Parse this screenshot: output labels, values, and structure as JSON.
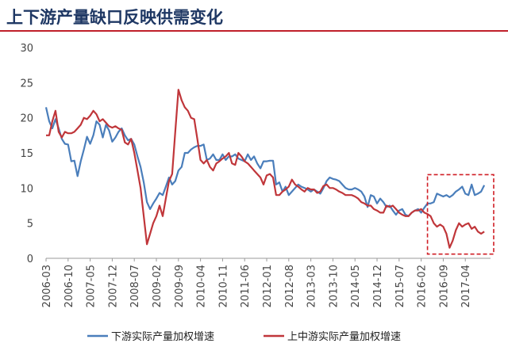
{
  "title": "上下游产量缺口反映供需变化",
  "chart_data": {
    "type": "line",
    "title": "上下游产量缺口反映供需变化",
    "xlabel": "",
    "ylabel": "",
    "ylim": [
      0,
      30
    ],
    "yticks": [
      0,
      5,
      10,
      15,
      20,
      25,
      30
    ],
    "xtick_labels": [
      "2006-03",
      "2006-10",
      "2007-05",
      "2007-12",
      "2008-07",
      "2009-02",
      "2009-09",
      "2010-04",
      "2010-11",
      "2011-06",
      "2012-01",
      "2012-08",
      "2013-03",
      "2013-10",
      "2014-05",
      "2014-12",
      "2015-07",
      "2016-02",
      "2016-09",
      "2017-04"
    ],
    "x_start": "2006-03",
    "x_end": "2017-12",
    "grid": false,
    "legend_position": "bottom",
    "highlight_box": {
      "x_from": "2016-04",
      "x_to": "2018-01",
      "y_from": 0.6,
      "y_to": 11.9
    },
    "series": [
      {
        "name": "下游实际产量加权增速",
        "color": "#4a7ebb",
        "points": [
          [
            "2006-03",
            21.5
          ],
          [
            "2006-04",
            19.5
          ],
          [
            "2006-05",
            18.5
          ],
          [
            "2006-06",
            19.8
          ],
          [
            "2006-07",
            18.5
          ],
          [
            "2006-08",
            17.0
          ],
          [
            "2006-09",
            16.3
          ],
          [
            "2006-10",
            16.2
          ],
          [
            "2006-11",
            13.8
          ],
          [
            "2006-12",
            13.9
          ],
          [
            "2007-01",
            11.7
          ],
          [
            "2007-02",
            13.8
          ],
          [
            "2007-03",
            15.5
          ],
          [
            "2007-04",
            17.3
          ],
          [
            "2007-05",
            16.3
          ],
          [
            "2007-06",
            17.5
          ],
          [
            "2007-07",
            19.5
          ],
          [
            "2007-08",
            19.0
          ],
          [
            "2007-09",
            17.2
          ],
          [
            "2007-10",
            19.0
          ],
          [
            "2007-11",
            18.2
          ],
          [
            "2007-12",
            16.6
          ],
          [
            "2008-01",
            17.2
          ],
          [
            "2008-02",
            18.0
          ],
          [
            "2008-03",
            18.5
          ],
          [
            "2008-04",
            17.5
          ],
          [
            "2008-05",
            16.8
          ],
          [
            "2008-06",
            17.0
          ],
          [
            "2008-07",
            16.2
          ],
          [
            "2008-08",
            14.5
          ],
          [
            "2008-09",
            13.0
          ],
          [
            "2008-10",
            10.8
          ],
          [
            "2008-11",
            8.0
          ],
          [
            "2008-12",
            7.0
          ],
          [
            "2009-01",
            7.8
          ],
          [
            "2009-02",
            8.5
          ],
          [
            "2009-03",
            9.3
          ],
          [
            "2009-04",
            9.0
          ],
          [
            "2009-05",
            10.2
          ],
          [
            "2009-06",
            11.5
          ],
          [
            "2009-07",
            10.5
          ],
          [
            "2009-08",
            11.0
          ],
          [
            "2009-09",
            12.5
          ],
          [
            "2009-10",
            13.0
          ],
          [
            "2009-11",
            15.0
          ],
          [
            "2009-12",
            15.0
          ],
          [
            "2010-01",
            15.5
          ],
          [
            "2010-02",
            15.8
          ],
          [
            "2010-03",
            16.0
          ],
          [
            "2010-04",
            16.0
          ],
          [
            "2010-05",
            16.2
          ],
          [
            "2010-06",
            14.0
          ],
          [
            "2010-07",
            14.2
          ],
          [
            "2010-08",
            14.8
          ],
          [
            "2010-09",
            14.0
          ],
          [
            "2010-10",
            14.0
          ],
          [
            "2010-11",
            14.8
          ],
          [
            "2010-12",
            14.0
          ],
          [
            "2011-01",
            14.5
          ],
          [
            "2011-02",
            14.5
          ],
          [
            "2011-03",
            14.8
          ],
          [
            "2011-04",
            14.2
          ],
          [
            "2011-05",
            14.0
          ],
          [
            "2011-06",
            13.8
          ],
          [
            "2011-07",
            14.8
          ],
          [
            "2011-08",
            14.0
          ],
          [
            "2011-09",
            14.5
          ],
          [
            "2011-10",
            13.5
          ],
          [
            "2011-11",
            12.8
          ],
          [
            "2011-12",
            13.8
          ],
          [
            "2012-01",
            13.8
          ],
          [
            "2012-02",
            13.9
          ],
          [
            "2012-03",
            13.9
          ],
          [
            "2012-04",
            10.5
          ],
          [
            "2012-05",
            10.8
          ],
          [
            "2012-06",
            9.5
          ],
          [
            "2012-07",
            10.2
          ],
          [
            "2012-08",
            9.0
          ],
          [
            "2012-09",
            9.5
          ],
          [
            "2012-10",
            10.0
          ],
          [
            "2012-11",
            10.5
          ],
          [
            "2012-12",
            10.2
          ],
          [
            "2013-01",
            10.0
          ],
          [
            "2013-02",
            9.8
          ],
          [
            "2013-03",
            9.5
          ],
          [
            "2013-04",
            9.8
          ],
          [
            "2013-05",
            9.5
          ],
          [
            "2013-06",
            9.2
          ],
          [
            "2013-07",
            10.0
          ],
          [
            "2013-08",
            11.0
          ],
          [
            "2013-09",
            11.5
          ],
          [
            "2013-10",
            11.3
          ],
          [
            "2013-11",
            11.2
          ],
          [
            "2013-12",
            11.0
          ],
          [
            "2014-01",
            10.5
          ],
          [
            "2014-02",
            10.0
          ],
          [
            "2014-03",
            9.8
          ],
          [
            "2014-04",
            9.8
          ],
          [
            "2014-05",
            10.0
          ],
          [
            "2014-06",
            9.8
          ],
          [
            "2014-07",
            9.5
          ],
          [
            "2014-08",
            8.8
          ],
          [
            "2014-09",
            7.3
          ],
          [
            "2014-10",
            9.0
          ],
          [
            "2014-11",
            8.8
          ],
          [
            "2014-12",
            7.8
          ],
          [
            "2015-01",
            8.5
          ],
          [
            "2015-02",
            8.0
          ],
          [
            "2015-03",
            7.3
          ],
          [
            "2015-04",
            7.5
          ],
          [
            "2015-05",
            6.8
          ],
          [
            "2015-06",
            6.2
          ],
          [
            "2015-07",
            6.8
          ],
          [
            "2015-08",
            7.0
          ],
          [
            "2015-09",
            6.2
          ],
          [
            "2015-10",
            6.0
          ],
          [
            "2015-11",
            6.5
          ],
          [
            "2015-12",
            6.8
          ],
          [
            "2016-01",
            7.0
          ],
          [
            "2016-02",
            6.5
          ],
          [
            "2016-03",
            7.2
          ],
          [
            "2016-04",
            7.8
          ],
          [
            "2016-05",
            7.8
          ],
          [
            "2016-06",
            8.0
          ],
          [
            "2016-07",
            9.2
          ],
          [
            "2016-08",
            9.0
          ],
          [
            "2016-09",
            8.8
          ],
          [
            "2016-10",
            9.0
          ],
          [
            "2016-11",
            8.7
          ],
          [
            "2016-12",
            9.0
          ],
          [
            "2017-01",
            9.5
          ],
          [
            "2017-02",
            9.8
          ],
          [
            "2017-03",
            10.2
          ],
          [
            "2017-04",
            9.2
          ],
          [
            "2017-05",
            9.0
          ],
          [
            "2017-06",
            10.5
          ],
          [
            "2017-07",
            9.0
          ],
          [
            "2017-08",
            9.2
          ],
          [
            "2017-09",
            9.5
          ],
          [
            "2017-10",
            10.4
          ]
        ]
      },
      {
        "name": "上中游实际产量加权增速",
        "color": "#c0363a",
        "points": [
          [
            "2006-03",
            17.5
          ],
          [
            "2006-04",
            17.5
          ],
          [
            "2006-05",
            19.5
          ],
          [
            "2006-06",
            21.0
          ],
          [
            "2006-07",
            18.0
          ],
          [
            "2006-08",
            17.2
          ],
          [
            "2006-09",
            18.0
          ],
          [
            "2006-10",
            17.8
          ],
          [
            "2006-11",
            17.8
          ],
          [
            "2006-12",
            18.0
          ],
          [
            "2007-01",
            18.5
          ],
          [
            "2007-02",
            19.0
          ],
          [
            "2007-03",
            20.0
          ],
          [
            "2007-04",
            19.8
          ],
          [
            "2007-05",
            20.3
          ],
          [
            "2007-06",
            21.0
          ],
          [
            "2007-07",
            20.5
          ],
          [
            "2007-08",
            19.5
          ],
          [
            "2007-09",
            19.8
          ],
          [
            "2007-10",
            19.3
          ],
          [
            "2007-11",
            18.8
          ],
          [
            "2007-12",
            18.6
          ],
          [
            "2008-01",
            18.8
          ],
          [
            "2008-02",
            18.5
          ],
          [
            "2008-03",
            18.3
          ],
          [
            "2008-04",
            16.5
          ],
          [
            "2008-05",
            16.2
          ],
          [
            "2008-06",
            17.0
          ],
          [
            "2008-07",
            15.0
          ],
          [
            "2008-08",
            12.5
          ],
          [
            "2008-09",
            10.0
          ],
          [
            "2008-10",
            6.0
          ],
          [
            "2008-11",
            2.0
          ],
          [
            "2008-12",
            3.5
          ],
          [
            "2009-01",
            5.0
          ],
          [
            "2009-02",
            6.0
          ],
          [
            "2009-03",
            7.5
          ],
          [
            "2009-04",
            6.0
          ],
          [
            "2009-05",
            8.5
          ],
          [
            "2009-06",
            11.0
          ],
          [
            "2009-07",
            12.0
          ],
          [
            "2009-08",
            18.0
          ],
          [
            "2009-09",
            24.0
          ],
          [
            "2009-10",
            22.5
          ],
          [
            "2009-11",
            21.5
          ],
          [
            "2009-12",
            21.0
          ],
          [
            "2010-01",
            20.0
          ],
          [
            "2010-02",
            19.8
          ],
          [
            "2010-03",
            17.0
          ],
          [
            "2010-04",
            14.0
          ],
          [
            "2010-05",
            13.5
          ],
          [
            "2010-06",
            14.0
          ],
          [
            "2010-07",
            13.0
          ],
          [
            "2010-08",
            12.5
          ],
          [
            "2010-09",
            13.5
          ],
          [
            "2010-10",
            13.8
          ],
          [
            "2010-11",
            14.2
          ],
          [
            "2010-12",
            14.5
          ],
          [
            "2011-01",
            15.0
          ],
          [
            "2011-02",
            13.5
          ],
          [
            "2011-03",
            13.3
          ],
          [
            "2011-04",
            15.0
          ],
          [
            "2011-05",
            14.5
          ],
          [
            "2011-06",
            13.8
          ],
          [
            "2011-07",
            13.5
          ],
          [
            "2011-08",
            13.0
          ],
          [
            "2011-09",
            12.5
          ],
          [
            "2011-10",
            12.0
          ],
          [
            "2011-11",
            11.5
          ],
          [
            "2011-12",
            10.5
          ],
          [
            "2012-01",
            11.8
          ],
          [
            "2012-02",
            12.0
          ],
          [
            "2012-03",
            11.5
          ],
          [
            "2012-04",
            9.0
          ],
          [
            "2012-05",
            9.0
          ],
          [
            "2012-06",
            9.5
          ],
          [
            "2012-07",
            9.8
          ],
          [
            "2012-08",
            10.2
          ],
          [
            "2012-09",
            11.2
          ],
          [
            "2012-10",
            10.5
          ],
          [
            "2012-11",
            10.2
          ],
          [
            "2012-12",
            9.8
          ],
          [
            "2013-01",
            9.5
          ],
          [
            "2013-02",
            10.0
          ],
          [
            "2013-03",
            9.8
          ],
          [
            "2013-04",
            9.8
          ],
          [
            "2013-05",
            9.3
          ],
          [
            "2013-06",
            9.5
          ],
          [
            "2013-07",
            10.3
          ],
          [
            "2013-08",
            10.5
          ],
          [
            "2013-09",
            10.0
          ],
          [
            "2013-10",
            10.0
          ],
          [
            "2013-11",
            9.8
          ],
          [
            "2013-12",
            9.5
          ],
          [
            "2014-01",
            9.3
          ],
          [
            "2014-02",
            9.0
          ],
          [
            "2014-03",
            9.0
          ],
          [
            "2014-04",
            9.0
          ],
          [
            "2014-05",
            8.8
          ],
          [
            "2014-06",
            8.5
          ],
          [
            "2014-07",
            8.0
          ],
          [
            "2014-08",
            7.8
          ],
          [
            "2014-09",
            7.5
          ],
          [
            "2014-10",
            7.5
          ],
          [
            "2014-11",
            7.0
          ],
          [
            "2014-12",
            6.8
          ],
          [
            "2015-01",
            6.5
          ],
          [
            "2015-02",
            6.5
          ],
          [
            "2015-03",
            7.5
          ],
          [
            "2015-04",
            7.3
          ],
          [
            "2015-05",
            7.5
          ],
          [
            "2015-06",
            7.0
          ],
          [
            "2015-07",
            6.5
          ],
          [
            "2015-08",
            6.2
          ],
          [
            "2015-09",
            6.0
          ],
          [
            "2015-10",
            6.0
          ],
          [
            "2015-11",
            6.5
          ],
          [
            "2015-12",
            6.8
          ],
          [
            "2016-01",
            6.8
          ],
          [
            "2016-02",
            7.0
          ],
          [
            "2016-03",
            6.5
          ],
          [
            "2016-04",
            6.3
          ],
          [
            "2016-05",
            6.0
          ],
          [
            "2016-06",
            5.0
          ],
          [
            "2016-07",
            4.5
          ],
          [
            "2016-08",
            4.8
          ],
          [
            "2016-09",
            4.5
          ],
          [
            "2016-10",
            3.5
          ],
          [
            "2016-11",
            1.5
          ],
          [
            "2016-12",
            2.5
          ],
          [
            "2017-01",
            4.0
          ],
          [
            "2017-02",
            5.0
          ],
          [
            "2017-03",
            4.5
          ],
          [
            "2017-04",
            4.8
          ],
          [
            "2017-05",
            5.0
          ],
          [
            "2017-06",
            4.2
          ],
          [
            "2017-07",
            4.5
          ],
          [
            "2017-08",
            3.8
          ],
          [
            "2017-09",
            3.5
          ],
          [
            "2017-10",
            3.8
          ]
        ]
      }
    ]
  }
}
